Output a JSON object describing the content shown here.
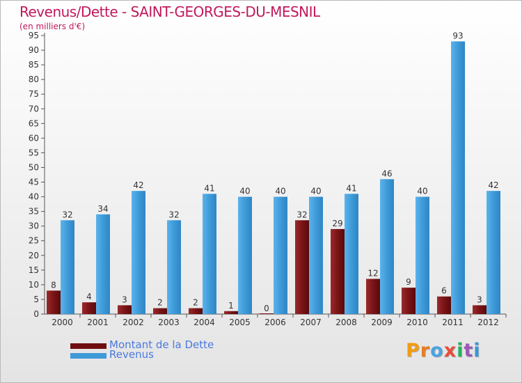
{
  "title": "Revenus/Dette - SAINT-GEORGES-DU-MESNIL",
  "subtitle": "(en milliers d'€)",
  "logo_text": "Proxiti",
  "colors": {
    "title": "#c2185b",
    "debt": "#7a1416",
    "revenue": "#3e9ad8",
    "legend_text": "#4a78e0"
  },
  "legend": [
    {
      "label": "Montant de la Dette",
      "color": "#6e0e10"
    },
    {
      "label": "Revenus",
      "color": "#3e9ad8"
    }
  ],
  "chart_data": {
    "type": "bar",
    "title": "Revenus/Dette - SAINT-GEORGES-DU-MESNIL",
    "subtitle": "(en milliers d'€)",
    "xlabel": "",
    "ylabel": "",
    "ylim": [
      0,
      95
    ],
    "yticks": [
      0,
      5,
      10,
      15,
      20,
      25,
      30,
      35,
      40,
      45,
      50,
      55,
      60,
      65,
      70,
      75,
      80,
      85,
      90,
      95
    ],
    "grid": false,
    "legend_position": "bottom-left",
    "categories": [
      "2000",
      "2001",
      "2002",
      "2003",
      "2004",
      "2005",
      "2006",
      "2007",
      "2008",
      "2009",
      "2010",
      "2011",
      "2012"
    ],
    "series": [
      {
        "name": "Montant de la Dette",
        "values": [
          8,
          4,
          3,
          2,
          2,
          1,
          0,
          32,
          29,
          12,
          9,
          6,
          3
        ]
      },
      {
        "name": "Revenus",
        "values": [
          32,
          34,
          42,
          32,
          41,
          40,
          40,
          40,
          41,
          46,
          40,
          93,
          42
        ]
      }
    ]
  }
}
